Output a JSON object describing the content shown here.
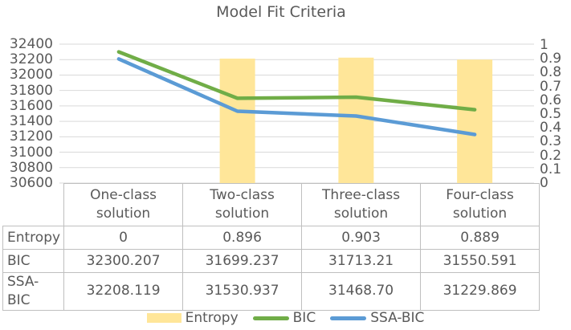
{
  "title": "Model Fit Criteria",
  "chart_data": {
    "type": "combo",
    "title": "Model Fit Criteria",
    "categories": [
      "One-class solution",
      "Two-class solution",
      "Three-class solution",
      "Four-class solution"
    ],
    "series": [
      {
        "name": "Entropy",
        "type": "bar",
        "axis": "right",
        "color": "#FFE699",
        "values": [
          0,
          0.896,
          0.903,
          0.889
        ]
      },
      {
        "name": "BIC",
        "type": "line",
        "axis": "left",
        "color": "#70AD47",
        "values": [
          32300.207,
          31699.237,
          31713.21,
          31550.591
        ]
      },
      {
        "name": "SSA-BIC",
        "type": "line",
        "axis": "left",
        "color": "#5B9BD5",
        "values": [
          32208.119,
          31530.937,
          31468.7,
          31229.869
        ]
      }
    ],
    "left_axis": {
      "min": 30600,
      "max": 32400,
      "step": 200,
      "tick_labels": [
        "32400",
        "32200",
        "32000",
        "31800",
        "31600",
        "31400",
        "31200",
        "31000",
        "30800",
        "30600"
      ]
    },
    "right_axis": {
      "min": 0,
      "max": 1,
      "step": 0.1,
      "tick_labels": [
        "1",
        "0.9",
        "0.8",
        "0.7",
        "0.6",
        "0.5",
        "0.4",
        "0.3",
        "0.2",
        "0.1",
        "0"
      ]
    },
    "gridlines": "horizontal",
    "legend_position": "bottom",
    "colors": {
      "gridline": "#D9D9D9",
      "text": "#595959",
      "table_border": "#BFBFBF"
    }
  },
  "table": {
    "column_headers": [
      "One-class solution",
      "Two-class solution",
      "Three-class solution",
      "Four-class solution"
    ],
    "rows": [
      {
        "label": "Entropy",
        "values": [
          "0",
          "0.896",
          "0.903",
          "0.889"
        ]
      },
      {
        "label": "BIC",
        "values": [
          "32300.207",
          "31699.237",
          "31713.21",
          "31550.591"
        ]
      },
      {
        "label": "SSA-BIC",
        "values": [
          "32208.119",
          "31530.937",
          "31468.70",
          "31229.869"
        ]
      }
    ]
  },
  "legend": {
    "items": [
      {
        "label": "Entropy"
      },
      {
        "label": "BIC"
      },
      {
        "label": "SSA-BIC"
      }
    ]
  }
}
